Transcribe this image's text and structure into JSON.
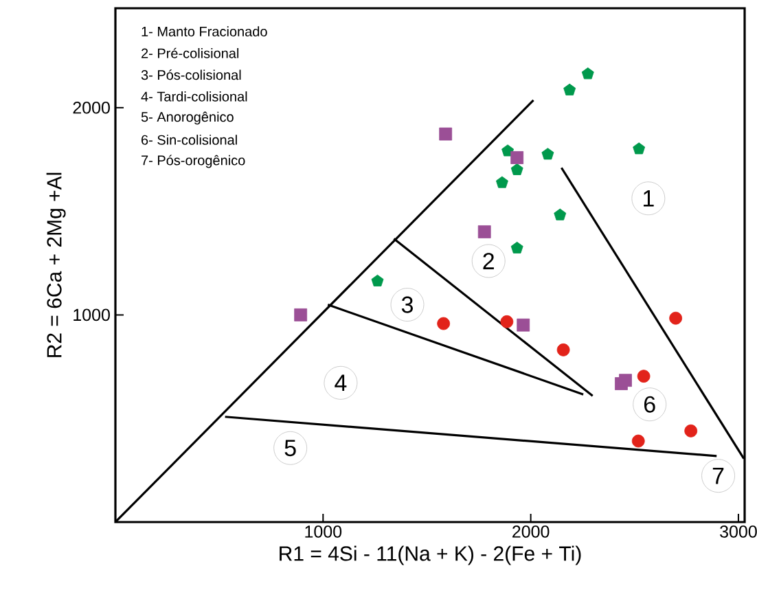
{
  "chart_data": {
    "type": "scatter",
    "xlabel": "R1 = 4Si - 11(Na + K) - 2(Fe + Ti)",
    "ylabel": "R2 = 6Ca + 2Mg +Al",
    "xlim": [
      0,
      3030
    ],
    "ylim": [
      0,
      2480
    ],
    "xticks": [
      1000,
      2000,
      3000
    ],
    "yticks": [
      1000,
      2000
    ],
    "grid": false,
    "series": [
      {
        "color": "#00994c",
        "x": [
          2275,
          2187,
          2521,
          1889,
          2082,
          1934,
          1862,
          2141,
          1934,
          1262
        ],
        "values": [
          2163,
          2085,
          1801,
          1791,
          1775,
          1700,
          1638,
          1482,
          1322,
          1163
        ]
      },
      {
        "marker": "square",
        "color": "#9b4f96",
        "x": [
          1590,
          1934,
          1777,
          892,
          1964,
          2436,
          2456
        ],
        "values": [
          1873,
          1759,
          1401,
          1000,
          951,
          668,
          684
        ]
      },
      {
        "marker": "circle",
        "color": "#e2231a",
        "x": [
          1580,
          1885,
          2157,
          2698,
          2544,
          2771,
          2518
        ],
        "values": [
          958,
          967,
          831,
          984,
          704,
          440,
          391
        ]
      },
      {
        "type": "line",
        "marker": "none",
        "color": "#000000",
        "x": [
          0,
          2013
        ],
        "values": [
          0,
          2036
        ]
      },
      {
        "type": "line",
        "marker": "none",
        "color": "#000000",
        "x": [
          1341,
          2298
        ],
        "values": [
          1368,
          609
        ]
      },
      {
        "type": "line",
        "marker": "none",
        "color": "#000000",
        "x": [
          1023,
          2253
        ],
        "values": [
          1049,
          616
        ]
      },
      {
        "type": "line",
        "marker": "none",
        "color": "#000000",
        "x": [
          528,
          2895
        ],
        "values": [
          508,
          319
        ]
      },
      {
        "type": "line",
        "marker": "none",
        "color": "#000000",
        "x": [
          2148,
          3026
        ],
        "values": [
          1710,
          306
        ]
      }
    ],
    "annotations": [
      "1- Manto Fracionado",
      "2- Pré-colisional",
      "3- Pós-colisional",
      "4- Tardi-colisional",
      "5- Anorogênico",
      "6- Sin-colisional",
      "7- Pós-orogênico",
      "1",
      "2",
      "3",
      "4",
      "5",
      "6",
      "7"
    ]
  }
}
